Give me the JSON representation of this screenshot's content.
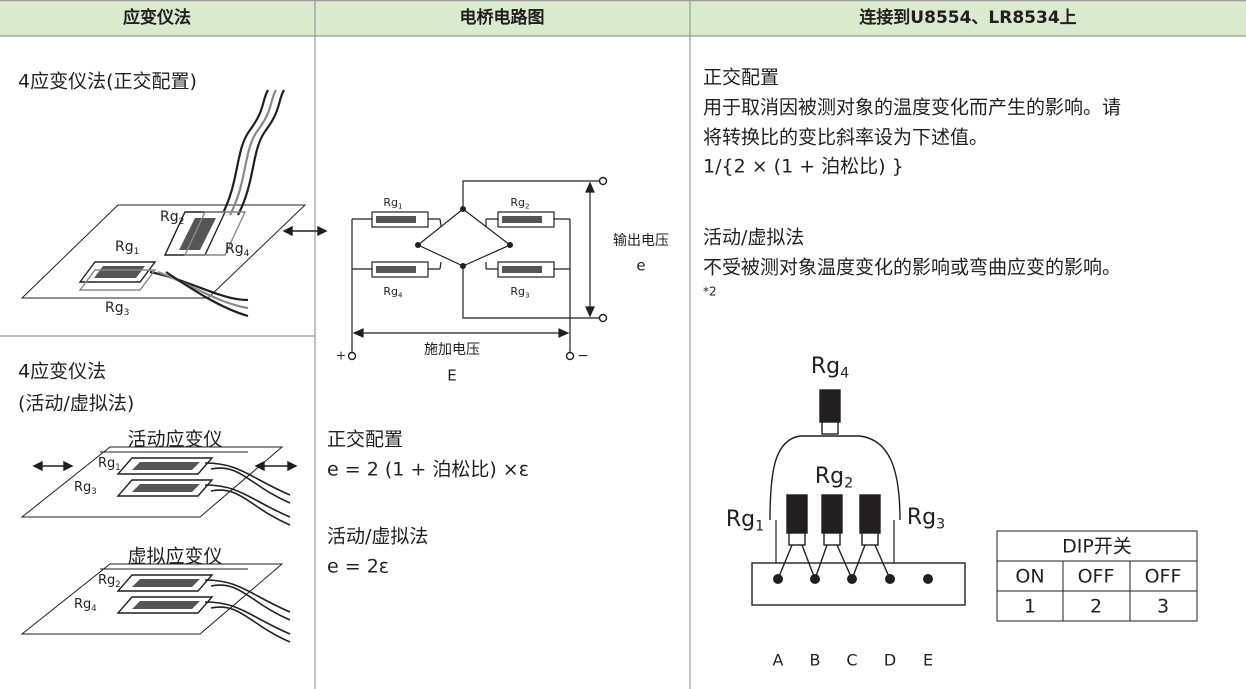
{
  "header": {
    "col1": "应变仪法",
    "col2": "电桥电路图",
    "col3": "连接到U8554、LR8534上"
  },
  "method_column": {
    "quadrature": {
      "title": "4应变仪法(正交配置)",
      "gauges": [
        {
          "text": "Rg",
          "sub": "2"
        },
        {
          "text": "Rg",
          "sub": "1"
        },
        {
          "text": "Rg",
          "sub": "4"
        },
        {
          "text": "Rg",
          "sub": "3"
        }
      ]
    },
    "active_dummy": {
      "title_lines": [
        "4应变仪法",
        "(活动/虚拟法)"
      ],
      "active_label": "活动应变仪",
      "dummy_label": "虚拟应变仪",
      "gauges": [
        {
          "text": "Rg",
          "sub": "1"
        },
        {
          "text": "Rg",
          "sub": "3"
        },
        {
          "text": "Rg",
          "sub": "2"
        },
        {
          "text": "Rg",
          "sub": "4"
        }
      ]
    }
  },
  "bridge_column": {
    "gauges": [
      {
        "text": "Rg",
        "sub": "1"
      },
      {
        "text": "Rg",
        "sub": "2"
      },
      {
        "text": "Rg",
        "sub": "4"
      },
      {
        "text": "Rg",
        "sub": "3"
      }
    ],
    "output_label": "输出电压",
    "output_symbol": "e",
    "supply_label": "施加电压",
    "supply_symbol": "E",
    "plus": "+",
    "minus": "−",
    "formulas": [
      {
        "heading": "正交配置",
        "formula": "e = 2 (1 + 泊松比) ×ε"
      },
      {
        "heading": "活动/虚拟法",
        "formula": "e = 2ε"
      }
    ]
  },
  "connection_column": {
    "quadrature": {
      "heading": "正交配置",
      "lines": [
        "用于取消因被测对象的温度变化而产生的影响。请",
        "将转换比的变比斜率设为下述值。"
      ],
      "formula": "1/{2 × (1 + 泊松比) }"
    },
    "active_dummy": {
      "heading": "活动/虚拟法",
      "text": "不受被测对象温度变化的影响或弯曲应变的影响。",
      "note": "*2"
    },
    "gauges": [
      {
        "text": "Rg",
        "sub": "4"
      },
      {
        "text": "Rg",
        "sub": "2"
      },
      {
        "text": "Rg",
        "sub": "1"
      },
      {
        "text": "Rg",
        "sub": "3"
      }
    ],
    "terminals": [
      "A",
      "B",
      "C",
      "D",
      "E"
    ],
    "dip_switch": {
      "title": "DIP开关",
      "states": [
        "ON",
        "OFF",
        "OFF"
      ],
      "numbers": [
        "1",
        "2",
        "3"
      ]
    }
  }
}
